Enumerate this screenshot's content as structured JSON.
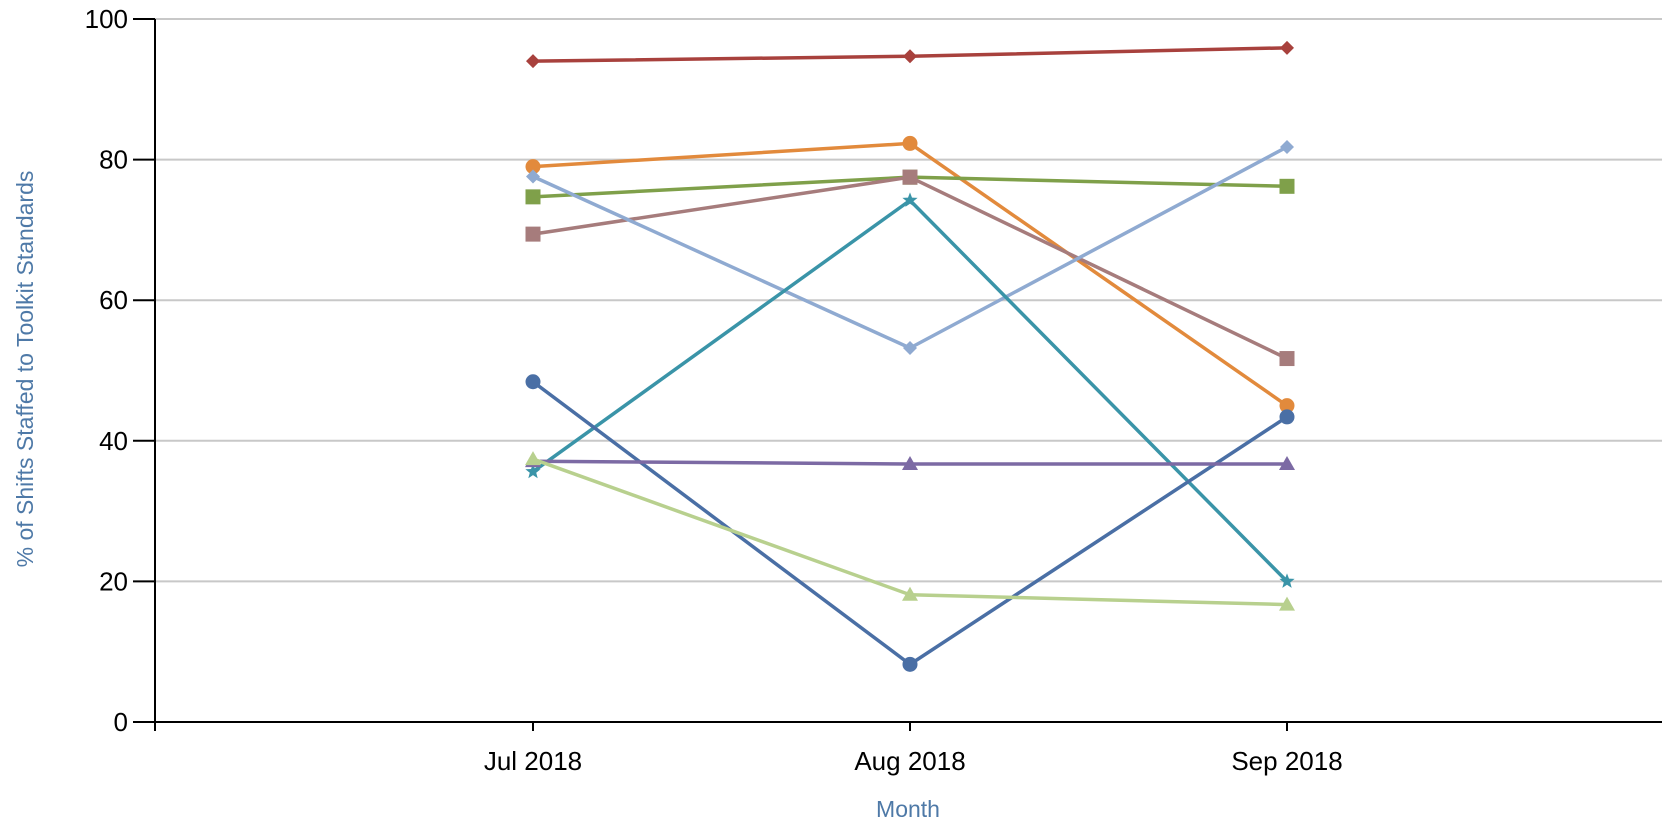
{
  "chart_data": {
    "type": "line",
    "title": "",
    "xlabel": "Month",
    "ylabel": "% of Shifts Staffed to Toolkit Standards",
    "ylim": [
      0,
      100
    ],
    "yticks": [
      0,
      20,
      40,
      60,
      80,
      100
    ],
    "categories": [
      "Jul 2018",
      "Aug 2018",
      "Sep 2018"
    ],
    "grid": "horizontal",
    "legend": "none",
    "series": [
      {
        "color": "#a8413d",
        "marker": "diamond",
        "values": [
          94.0,
          94.7,
          95.9
        ]
      },
      {
        "color": "#e28a3c",
        "marker": "circle",
        "values": [
          79.0,
          82.3,
          45.0
        ]
      },
      {
        "color": "#7fa04a",
        "marker": "square",
        "values": [
          74.7,
          77.5,
          76.2
        ]
      },
      {
        "color": "#a67c7c",
        "marker": "square",
        "values": [
          69.4,
          77.5,
          51.7
        ]
      },
      {
        "color": "#8faad1",
        "marker": "diamond",
        "values": [
          77.6,
          53.2,
          81.8
        ]
      },
      {
        "color": "#3a94a8",
        "marker": "star",
        "values": [
          35.6,
          74.2,
          20.0
        ]
      },
      {
        "color": "#4a6fa5",
        "marker": "circle",
        "values": [
          48.4,
          8.2,
          43.4
        ]
      },
      {
        "color": "#7c6aa4",
        "marker": "triangle",
        "values": [
          37.1,
          36.7,
          36.7
        ]
      },
      {
        "color": "#b8d08e",
        "marker": "triangle",
        "values": [
          37.4,
          18.1,
          16.7
        ]
      }
    ]
  }
}
